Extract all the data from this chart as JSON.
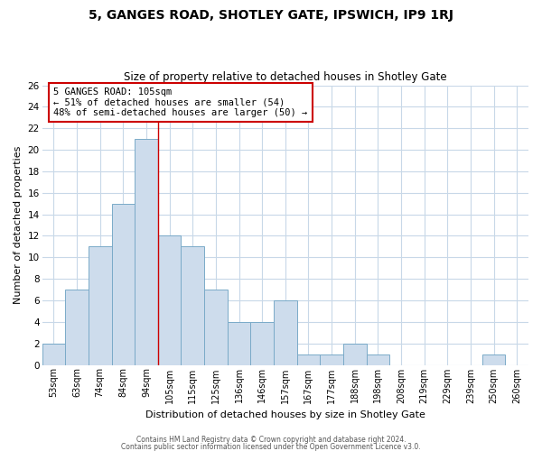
{
  "title": "5, GANGES ROAD, SHOTLEY GATE, IPSWICH, IP9 1RJ",
  "subtitle": "Size of property relative to detached houses in Shotley Gate",
  "xlabel": "Distribution of detached houses by size in Shotley Gate",
  "ylabel": "Number of detached properties",
  "bar_color": "#cddcec",
  "bar_edge_color": "#7aaac8",
  "bin_labels": [
    "53sqm",
    "63sqm",
    "74sqm",
    "84sqm",
    "94sqm",
    "105sqm",
    "115sqm",
    "125sqm",
    "136sqm",
    "146sqm",
    "157sqm",
    "167sqm",
    "177sqm",
    "188sqm",
    "198sqm",
    "208sqm",
    "219sqm",
    "229sqm",
    "239sqm",
    "250sqm",
    "260sqm"
  ],
  "bar_heights": [
    2,
    7,
    11,
    15,
    21,
    12,
    11,
    7,
    4,
    4,
    6,
    1,
    1,
    2,
    1,
    0,
    0,
    0,
    0,
    1,
    0
  ],
  "ylim": [
    0,
    26
  ],
  "yticks": [
    0,
    2,
    4,
    6,
    8,
    10,
    12,
    14,
    16,
    18,
    20,
    22,
    24,
    26
  ],
  "marker_label": "5 GANGES ROAD: 105sqm",
  "annotation_line1": "← 51% of detached houses are smaller (54)",
  "annotation_line2": "48% of semi-detached houses are larger (50) →",
  "vline_bar_index": 5,
  "footer1": "Contains HM Land Registry data © Crown copyright and database right 2024.",
  "footer2": "Contains public sector information licensed under the Open Government Licence v3.0.",
  "background_color": "#ffffff",
  "grid_color": "#c8d8e8"
}
